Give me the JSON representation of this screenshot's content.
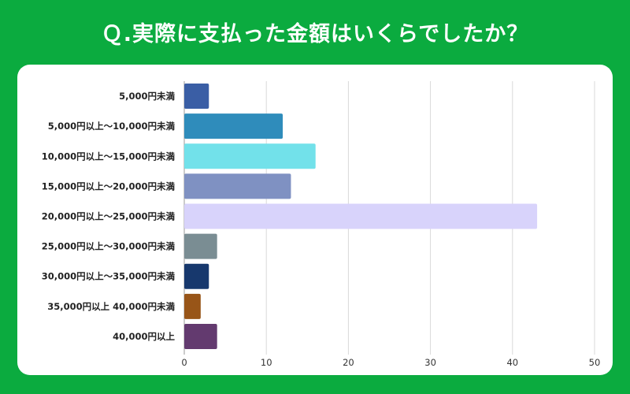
{
  "chart_data": {
    "type": "bar",
    "orientation": "horizontal",
    "title": "Ｑ.実際に支払った金額はいくらでしたか？",
    "categories": [
      "5,000円未満",
      "5,000円以上〜10,000円未満",
      "10,000円以上〜15,000円未満",
      "15,000円以上〜20,000円未満",
      "20,000円以上〜25,000円未満",
      "25,000円以上〜30,000円未満",
      "30,000円以上〜35,000円未満",
      "35,000円以上 40,000円未満",
      "40,000円以上"
    ],
    "values": [
      3,
      12,
      16,
      13,
      43,
      4,
      3,
      2,
      4
    ],
    "colors": [
      "#3a5ea5",
      "#2f8cbb",
      "#72e1ea",
      "#7f91c2",
      "#d8d3fb",
      "#7a8d93",
      "#17386d",
      "#985518",
      "#633a6f"
    ],
    "xlim": [
      0,
      50
    ],
    "xticks": [
      0,
      10,
      20,
      30,
      40,
      50
    ],
    "xlabel": "",
    "ylabel": "",
    "grid": true,
    "background": "#0bab3f"
  }
}
